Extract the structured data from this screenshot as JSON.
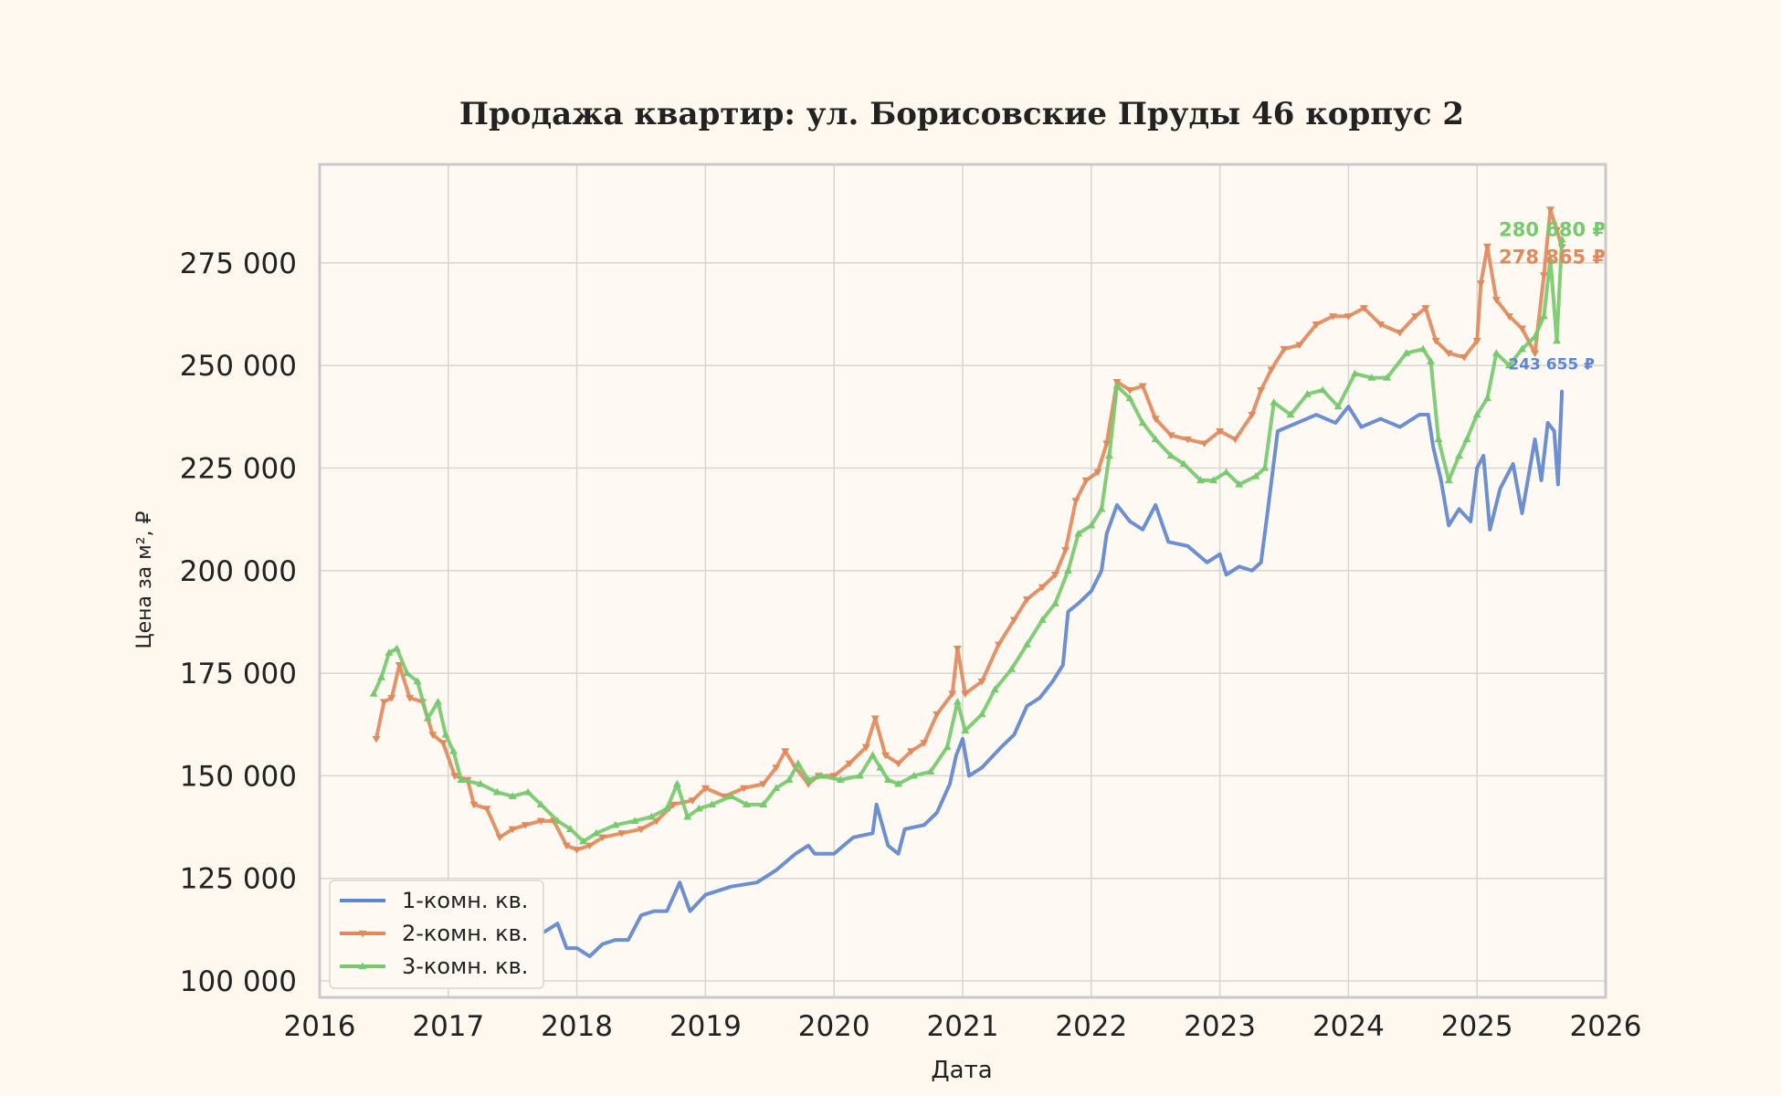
{
  "chart_data": {
    "type": "line",
    "title": "Продажа квартир: ул. Борисовские Пруды 46 корпус 2",
    "xlabel": "Дата",
    "ylabel": "Цена за м², ₽",
    "xlim": [
      2016,
      2026
    ],
    "ylim": [
      96000,
      299000
    ],
    "x_ticks": [
      2016,
      2017,
      2018,
      2019,
      2020,
      2021,
      2022,
      2023,
      2024,
      2025,
      2026
    ],
    "y_ticks": [
      100000,
      125000,
      150000,
      175000,
      200000,
      225000,
      250000,
      275000
    ],
    "y_tick_labels": [
      "100 000",
      "125 000",
      "150 000",
      "175 000",
      "200 000",
      "225 000",
      "250 000",
      "275 000"
    ],
    "grid": true,
    "legend_position": "bottom-left",
    "series": [
      {
        "name": "1-комн. кв.",
        "color": "#5f86cf",
        "marker": "none",
        "end_label": "243 655 ₽",
        "points": [
          [
            2016.75,
            122000
          ],
          [
            2016.83,
            121000
          ],
          [
            2016.92,
            117000
          ],
          [
            2017.0,
            118000
          ],
          [
            2017.1,
            116000
          ],
          [
            2017.25,
            113000
          ],
          [
            2017.5,
            111000
          ],
          [
            2017.75,
            112000
          ],
          [
            2017.85,
            114000
          ],
          [
            2017.92,
            108000
          ],
          [
            2018.0,
            108000
          ],
          [
            2018.1,
            106000
          ],
          [
            2018.2,
            109000
          ],
          [
            2018.3,
            110000
          ],
          [
            2018.4,
            110000
          ],
          [
            2018.5,
            116000
          ],
          [
            2018.6,
            117000
          ],
          [
            2018.7,
            117000
          ],
          [
            2018.8,
            124000
          ],
          [
            2018.88,
            117000
          ],
          [
            2019.0,
            121000
          ],
          [
            2019.2,
            123000
          ],
          [
            2019.4,
            124000
          ],
          [
            2019.55,
            127000
          ],
          [
            2019.7,
            131000
          ],
          [
            2019.8,
            133000
          ],
          [
            2019.85,
            131000
          ],
          [
            2020.0,
            131000
          ],
          [
            2020.15,
            135000
          ],
          [
            2020.3,
            136000
          ],
          [
            2020.33,
            143000
          ],
          [
            2020.42,
            133000
          ],
          [
            2020.5,
            131000
          ],
          [
            2020.55,
            137000
          ],
          [
            2020.7,
            138000
          ],
          [
            2020.8,
            141000
          ],
          [
            2020.9,
            148000
          ],
          [
            2020.95,
            155000
          ],
          [
            2021.0,
            159000
          ],
          [
            2021.05,
            150000
          ],
          [
            2021.15,
            152000
          ],
          [
            2021.3,
            157000
          ],
          [
            2021.4,
            160000
          ],
          [
            2021.5,
            167000
          ],
          [
            2021.6,
            169000
          ],
          [
            2021.7,
            173000
          ],
          [
            2021.78,
            177000
          ],
          [
            2021.82,
            190000
          ],
          [
            2021.9,
            192000
          ],
          [
            2022.0,
            195000
          ],
          [
            2022.08,
            200000
          ],
          [
            2022.12,
            209000
          ],
          [
            2022.2,
            216000
          ],
          [
            2022.3,
            212000
          ],
          [
            2022.4,
            210000
          ],
          [
            2022.5,
            216000
          ],
          [
            2022.6,
            207000
          ],
          [
            2022.75,
            206000
          ],
          [
            2022.9,
            202000
          ],
          [
            2023.0,
            204000
          ],
          [
            2023.05,
            199000
          ],
          [
            2023.15,
            201000
          ],
          [
            2023.25,
            200000
          ],
          [
            2023.32,
            202000
          ],
          [
            2023.37,
            214000
          ],
          [
            2023.45,
            234000
          ],
          [
            2023.6,
            236000
          ],
          [
            2023.75,
            238000
          ],
          [
            2023.9,
            236000
          ],
          [
            2024.0,
            240000
          ],
          [
            2024.1,
            235000
          ],
          [
            2024.25,
            237000
          ],
          [
            2024.4,
            235000
          ],
          [
            2024.55,
            238000
          ],
          [
            2024.62,
            238000
          ],
          [
            2024.66,
            230000
          ],
          [
            2024.72,
            222000
          ],
          [
            2024.78,
            211000
          ],
          [
            2024.86,
            215000
          ],
          [
            2024.95,
            212000
          ],
          [
            2025.0,
            225000
          ],
          [
            2025.05,
            228000
          ],
          [
            2025.1,
            210000
          ],
          [
            2025.18,
            220000
          ],
          [
            2025.28,
            226000
          ],
          [
            2025.35,
            214000
          ],
          [
            2025.45,
            232000
          ],
          [
            2025.5,
            222000
          ],
          [
            2025.55,
            236000
          ],
          [
            2025.6,
            234000
          ],
          [
            2025.63,
            221000
          ],
          [
            2025.66,
            243655
          ]
        ]
      },
      {
        "name": "2-комн. кв.",
        "color": "#e2895b",
        "marker": "triangle-down",
        "end_label": "278 865 ₽",
        "points": [
          [
            2016.44,
            159000
          ],
          [
            2016.5,
            168000
          ],
          [
            2016.56,
            169000
          ],
          [
            2016.62,
            177000
          ],
          [
            2016.7,
            169000
          ],
          [
            2016.8,
            168000
          ],
          [
            2016.88,
            160000
          ],
          [
            2016.96,
            158000
          ],
          [
            2017.05,
            150000
          ],
          [
            2017.15,
            149000
          ],
          [
            2017.2,
            143000
          ],
          [
            2017.3,
            142000
          ],
          [
            2017.4,
            135000
          ],
          [
            2017.5,
            137000
          ],
          [
            2017.6,
            138000
          ],
          [
            2017.72,
            139000
          ],
          [
            2017.82,
            139000
          ],
          [
            2017.92,
            133000
          ],
          [
            2018.0,
            132000
          ],
          [
            2018.1,
            133000
          ],
          [
            2018.2,
            135000
          ],
          [
            2018.35,
            136000
          ],
          [
            2018.5,
            137000
          ],
          [
            2018.62,
            139000
          ],
          [
            2018.75,
            143000
          ],
          [
            2018.9,
            144000
          ],
          [
            2019.0,
            147000
          ],
          [
            2019.15,
            145000
          ],
          [
            2019.3,
            147000
          ],
          [
            2019.45,
            148000
          ],
          [
            2019.55,
            152000
          ],
          [
            2019.62,
            156000
          ],
          [
            2019.7,
            152000
          ],
          [
            2019.8,
            148000
          ],
          [
            2019.88,
            150000
          ],
          [
            2020.0,
            150000
          ],
          [
            2020.12,
            153000
          ],
          [
            2020.25,
            157000
          ],
          [
            2020.32,
            164000
          ],
          [
            2020.4,
            155000
          ],
          [
            2020.5,
            153000
          ],
          [
            2020.6,
            156000
          ],
          [
            2020.7,
            158000
          ],
          [
            2020.8,
            165000
          ],
          [
            2020.92,
            170000
          ],
          [
            2020.96,
            181000
          ],
          [
            2021.02,
            170000
          ],
          [
            2021.15,
            173000
          ],
          [
            2021.28,
            182000
          ],
          [
            2021.4,
            188000
          ],
          [
            2021.5,
            193000
          ],
          [
            2021.62,
            196000
          ],
          [
            2021.72,
            199000
          ],
          [
            2021.8,
            205000
          ],
          [
            2021.88,
            217000
          ],
          [
            2021.96,
            222000
          ],
          [
            2022.05,
            224000
          ],
          [
            2022.12,
            231000
          ],
          [
            2022.2,
            246000
          ],
          [
            2022.3,
            244000
          ],
          [
            2022.4,
            245000
          ],
          [
            2022.5,
            237000
          ],
          [
            2022.62,
            233000
          ],
          [
            2022.75,
            232000
          ],
          [
            2022.88,
            231000
          ],
          [
            2023.0,
            234000
          ],
          [
            2023.12,
            232000
          ],
          [
            2023.25,
            238000
          ],
          [
            2023.32,
            244000
          ],
          [
            2023.4,
            249000
          ],
          [
            2023.5,
            254000
          ],
          [
            2023.62,
            255000
          ],
          [
            2023.75,
            260000
          ],
          [
            2023.88,
            262000
          ],
          [
            2024.0,
            262000
          ],
          [
            2024.12,
            264000
          ],
          [
            2024.25,
            260000
          ],
          [
            2024.4,
            258000
          ],
          [
            2024.52,
            262000
          ],
          [
            2024.6,
            264000
          ],
          [
            2024.68,
            256000
          ],
          [
            2024.78,
            253000
          ],
          [
            2024.9,
            252000
          ],
          [
            2025.0,
            256000
          ],
          [
            2025.03,
            270000
          ],
          [
            2025.08,
            279000
          ],
          [
            2025.15,
            266000
          ],
          [
            2025.25,
            262000
          ],
          [
            2025.35,
            259000
          ],
          [
            2025.45,
            253000
          ],
          [
            2025.52,
            272000
          ],
          [
            2025.57,
            288000
          ],
          [
            2025.62,
            283000
          ],
          [
            2025.66,
            278865
          ]
        ]
      },
      {
        "name": "3-комн. кв.",
        "color": "#77c96e",
        "marker": "triangle-up",
        "end_label": "280 680 ₽",
        "points": [
          [
            2016.42,
            170000
          ],
          [
            2016.48,
            174000
          ],
          [
            2016.54,
            180000
          ],
          [
            2016.6,
            181000
          ],
          [
            2016.68,
            175000
          ],
          [
            2016.76,
            173000
          ],
          [
            2016.84,
            164000
          ],
          [
            2016.92,
            168000
          ],
          [
            2016.98,
            160000
          ],
          [
            2017.04,
            156000
          ],
          [
            2017.1,
            149000
          ],
          [
            2017.25,
            148000
          ],
          [
            2017.38,
            146000
          ],
          [
            2017.5,
            145000
          ],
          [
            2017.62,
            146000
          ],
          [
            2017.72,
            143000
          ],
          [
            2017.85,
            139000
          ],
          [
            2017.95,
            137000
          ],
          [
            2018.05,
            134000
          ],
          [
            2018.15,
            136000
          ],
          [
            2018.3,
            138000
          ],
          [
            2018.45,
            139000
          ],
          [
            2018.58,
            140000
          ],
          [
            2018.7,
            142000
          ],
          [
            2018.78,
            148000
          ],
          [
            2018.86,
            140000
          ],
          [
            2018.95,
            142000
          ],
          [
            2019.05,
            143000
          ],
          [
            2019.2,
            145000
          ],
          [
            2019.32,
            143000
          ],
          [
            2019.45,
            143000
          ],
          [
            2019.55,
            147000
          ],
          [
            2019.65,
            149000
          ],
          [
            2019.72,
            153000
          ],
          [
            2019.8,
            149000
          ],
          [
            2019.9,
            150000
          ],
          [
            2020.05,
            149000
          ],
          [
            2020.2,
            150000
          ],
          [
            2020.3,
            155000
          ],
          [
            2020.36,
            152000
          ],
          [
            2020.42,
            149000
          ],
          [
            2020.5,
            148000
          ],
          [
            2020.62,
            150000
          ],
          [
            2020.75,
            151000
          ],
          [
            2020.88,
            157000
          ],
          [
            2020.96,
            168000
          ],
          [
            2021.02,
            161000
          ],
          [
            2021.15,
            165000
          ],
          [
            2021.25,
            171000
          ],
          [
            2021.38,
            176000
          ],
          [
            2021.5,
            182000
          ],
          [
            2021.62,
            188000
          ],
          [
            2021.72,
            192000
          ],
          [
            2021.82,
            200000
          ],
          [
            2021.9,
            209000
          ],
          [
            2022.0,
            211000
          ],
          [
            2022.08,
            215000
          ],
          [
            2022.14,
            228000
          ],
          [
            2022.2,
            245000
          ],
          [
            2022.3,
            242000
          ],
          [
            2022.4,
            236000
          ],
          [
            2022.5,
            232000
          ],
          [
            2022.62,
            228000
          ],
          [
            2022.72,
            226000
          ],
          [
            2022.85,
            222000
          ],
          [
            2022.95,
            222000
          ],
          [
            2023.05,
            224000
          ],
          [
            2023.15,
            221000
          ],
          [
            2023.28,
            223000
          ],
          [
            2023.35,
            225000
          ],
          [
            2023.42,
            241000
          ],
          [
            2023.55,
            238000
          ],
          [
            2023.68,
            243000
          ],
          [
            2023.8,
            244000
          ],
          [
            2023.92,
            240000
          ],
          [
            2024.05,
            248000
          ],
          [
            2024.18,
            247000
          ],
          [
            2024.3,
            247000
          ],
          [
            2024.45,
            253000
          ],
          [
            2024.58,
            254000
          ],
          [
            2024.64,
            251000
          ],
          [
            2024.7,
            232000
          ],
          [
            2024.78,
            222000
          ],
          [
            2024.86,
            228000
          ],
          [
            2024.92,
            232000
          ],
          [
            2025.0,
            238000
          ],
          [
            2025.08,
            242000
          ],
          [
            2025.15,
            253000
          ],
          [
            2025.25,
            250000
          ],
          [
            2025.35,
            254000
          ],
          [
            2025.45,
            257000
          ],
          [
            2025.52,
            262000
          ],
          [
            2025.57,
            276000
          ],
          [
            2025.62,
            256000
          ],
          [
            2025.66,
            280680
          ]
        ]
      }
    ]
  }
}
